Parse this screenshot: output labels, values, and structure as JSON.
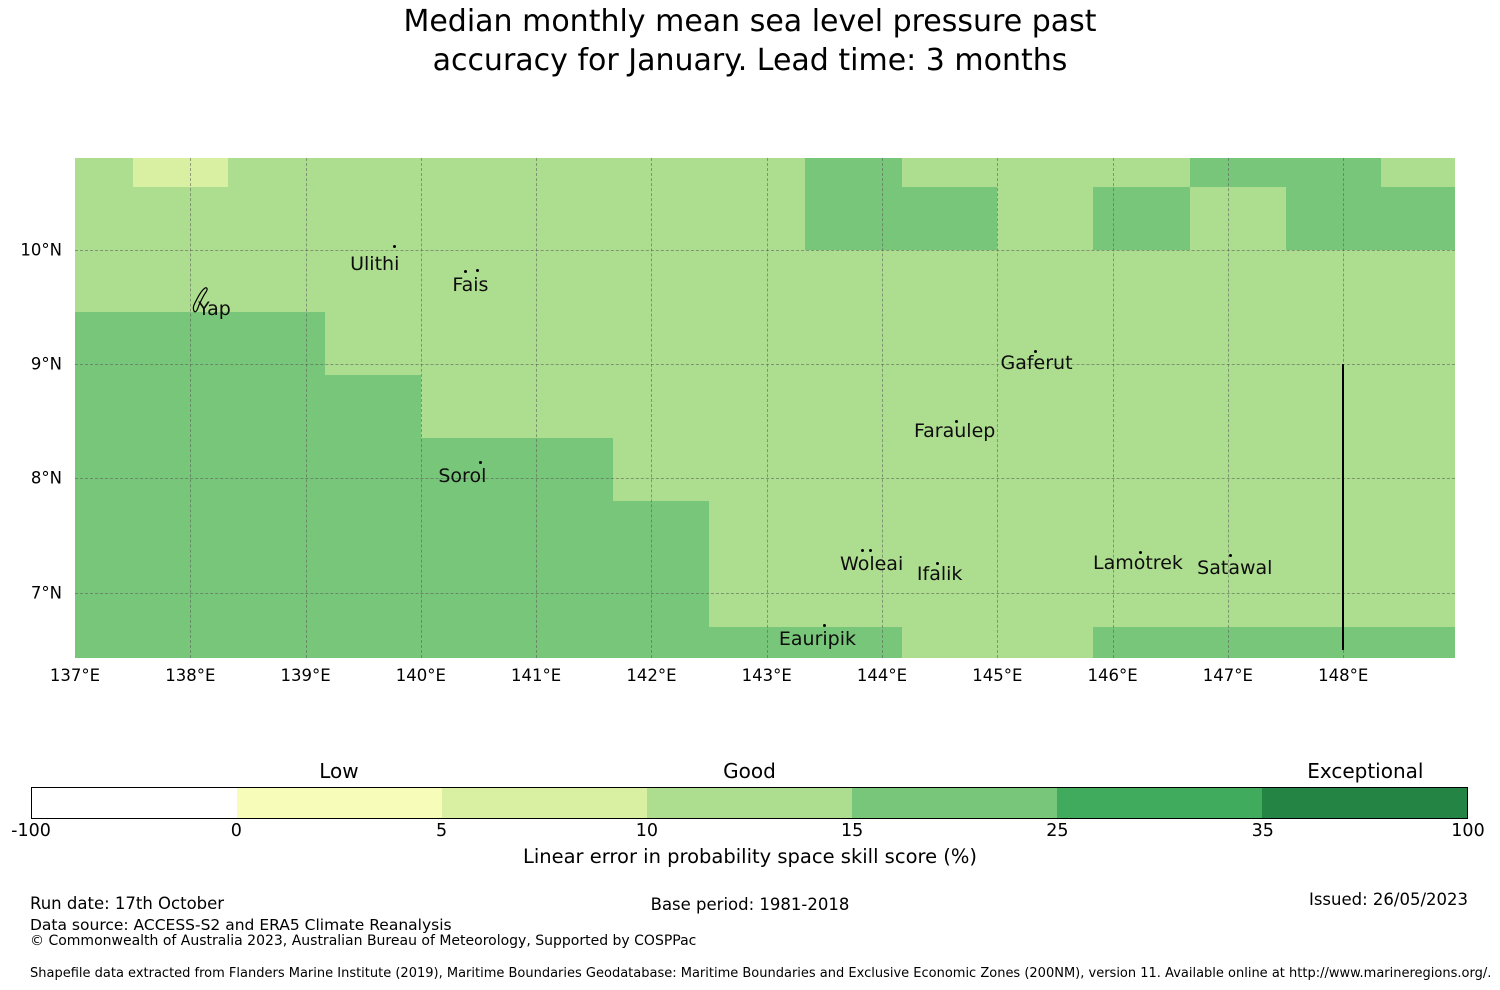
{
  "title": {
    "line1": "Median monthly mean sea level pressure past",
    "line2": "accuracy for January. Lead time: 3 months"
  },
  "chart_data": {
    "type": "heatmap",
    "extent": {
      "lon_min": 137.0,
      "lon_max": 148.97,
      "lat_min": 6.43,
      "lat_max": 10.8
    },
    "base_bin": "10-15",
    "bins": [
      {
        "range": "-100-0",
        "label": "Low-zone-white",
        "color": "#ffffff"
      },
      {
        "range": "0-5",
        "color": "#f7fcb9"
      },
      {
        "range": "5-10",
        "color": "#d9f0a3"
      },
      {
        "range": "10-15",
        "color": "#addd8e"
      },
      {
        "range": "15-25",
        "color": "#78c679"
      },
      {
        "range": "25-35",
        "color": "#41ab5d"
      },
      {
        "range": "35-100",
        "color": "#238443"
      }
    ],
    "cells": [
      {
        "lon": [
          137.5,
          138.33
        ],
        "lat": [
          10.55,
          10.8
        ],
        "bin": "5-10"
      },
      {
        "lon": [
          143.33,
          144.17
        ],
        "lat": [
          10.0,
          10.8
        ],
        "bin": "15-25"
      },
      {
        "lon": [
          144.17,
          145.0
        ],
        "lat": [
          10.0,
          10.55
        ],
        "bin": "15-25"
      },
      {
        "lon": [
          145.83,
          146.67
        ],
        "lat": [
          10.0,
          10.55
        ],
        "bin": "15-25"
      },
      {
        "lon": [
          146.67,
          148.33
        ],
        "lat": [
          10.55,
          10.8
        ],
        "bin": "15-25"
      },
      {
        "lon": [
          147.5,
          148.97
        ],
        "lat": [
          10.0,
          10.55
        ],
        "bin": "15-25"
      },
      {
        "lon": [
          137.0,
          139.17
        ],
        "lat": [
          8.9,
          9.45
        ],
        "bin": "15-25"
      },
      {
        "lon": [
          137.0,
          140.0
        ],
        "lat": [
          8.35,
          8.9
        ],
        "bin": "15-25"
      },
      {
        "lon": [
          137.0,
          141.67
        ],
        "lat": [
          7.8,
          8.35
        ],
        "bin": "15-25"
      },
      {
        "lon": [
          137.0,
          142.5
        ],
        "lat": [
          6.7,
          7.8
        ],
        "bin": "15-25"
      },
      {
        "lon": [
          137.0,
          144.17
        ],
        "lat": [
          6.43,
          6.7
        ],
        "bin": "15-25"
      },
      {
        "lon": [
          145.83,
          148.97
        ],
        "lat": [
          6.43,
          6.7
        ],
        "bin": "15-25"
      }
    ],
    "grid_lons": [
      138,
      139,
      140,
      141,
      142,
      143,
      144,
      145,
      146,
      147,
      148
    ],
    "grid_lats": [
      7,
      8,
      9,
      10
    ],
    "x_ticks": [
      {
        "lon": 137,
        "label": "137°E"
      },
      {
        "lon": 138,
        "label": "138°E"
      },
      {
        "lon": 139,
        "label": "139°E"
      },
      {
        "lon": 140,
        "label": "140°E"
      },
      {
        "lon": 141,
        "label": "141°E"
      },
      {
        "lon": 142,
        "label": "142°E"
      },
      {
        "lon": 143,
        "label": "143°E"
      },
      {
        "lon": 144,
        "label": "144°E"
      },
      {
        "lon": 145,
        "label": "145°E"
      },
      {
        "lon": 146,
        "label": "146°E"
      },
      {
        "lon": 147,
        "label": "147°E"
      },
      {
        "lon": 148,
        "label": "148°E"
      }
    ],
    "y_ticks": [
      {
        "lat": 10,
        "label": "10°N"
      },
      {
        "lat": 9,
        "label": "9°N"
      },
      {
        "lat": 8,
        "label": "8°N"
      },
      {
        "lat": 7,
        "label": "7°N"
      }
    ],
    "eez_line": {
      "lon": 148.0,
      "lat_from": 9.0,
      "lat_to": 6.5,
      "color": "#000000"
    },
    "islands": [
      {
        "name": "Ulithi",
        "label_lon": 139.6,
        "label_lat": 9.87,
        "markers": [
          [
            139.77,
            10.03
          ]
        ]
      },
      {
        "name": "Fais",
        "label_lon": 140.43,
        "label_lat": 9.69,
        "markers": [
          [
            140.39,
            9.81
          ],
          [
            140.49,
            9.82
          ]
        ]
      },
      {
        "name": "Yap",
        "label_lon": 138.21,
        "label_lat": 9.48,
        "markers": [],
        "outline": true,
        "outline_lon": 138.08,
        "outline_lat": 9.55
      },
      {
        "name": "Sorol",
        "label_lon": 140.36,
        "label_lat": 8.02,
        "markers": [
          [
            140.52,
            8.14
          ]
        ]
      },
      {
        "name": "Gaferut",
        "label_lon": 145.34,
        "label_lat": 9.01,
        "markers": [
          [
            145.33,
            9.11
          ]
        ]
      },
      {
        "name": "Faraulep",
        "label_lon": 144.63,
        "label_lat": 8.41,
        "markers": [
          [
            144.65,
            8.5
          ]
        ]
      },
      {
        "name": "Woleai",
        "label_lon": 143.91,
        "label_lat": 7.25,
        "markers": [
          [
            143.83,
            7.37
          ],
          [
            143.9,
            7.37
          ]
        ]
      },
      {
        "name": "Ifalik",
        "label_lon": 144.5,
        "label_lat": 7.16,
        "markers": [
          [
            144.48,
            7.26
          ]
        ]
      },
      {
        "name": "Lamotrek",
        "label_lon": 146.22,
        "label_lat": 7.26,
        "markers": [
          [
            146.24,
            7.35
          ]
        ]
      },
      {
        "name": "Satawal",
        "label_lon": 147.06,
        "label_lat": 7.22,
        "markers": [
          [
            147.02,
            7.33
          ]
        ]
      },
      {
        "name": "Eauripik",
        "label_lon": 143.44,
        "label_lat": 6.6,
        "markers": [
          [
            143.5,
            6.71
          ]
        ]
      }
    ],
    "colorbar": {
      "tick_labels": [
        "-100",
        "0",
        "5",
        "10",
        "15",
        "25",
        "35",
        "100"
      ],
      "zone_labels": [
        {
          "text": "Low",
          "segment_index": 1
        },
        {
          "text": "Good",
          "segment_index": 3
        },
        {
          "text": "Exceptional",
          "segment_index": 6
        }
      ],
      "caption": "Linear error in probability space skill score (%)"
    }
  },
  "footer": {
    "run_date": "Run date: 17th October",
    "data_source": "Data source: ACCESS-S2 and ERA5 Climate Reanalysis",
    "copyright": "© Commonwealth of Australia 2023, Australian Bureau of Meteorology, Supported by COSPPac",
    "base_period": "Base period: 1981-2018",
    "issued": "Issued: 26/05/2023",
    "shapefile_note": "Shapefile data extracted from Flanders Marine Institute (2019), Maritime Boundaries Geodatabase: Maritime Boundaries and Exclusive Economic Zones (200NM), version 11. Available online at http://www.marineregions.org/."
  }
}
